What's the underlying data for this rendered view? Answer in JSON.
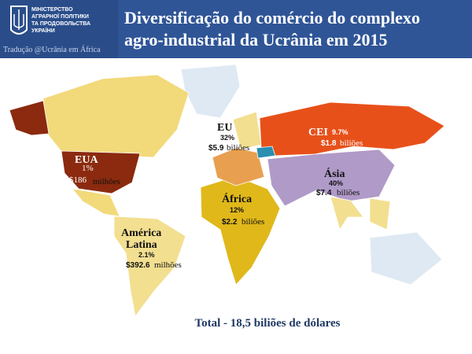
{
  "header": {
    "ministry": [
      "МІНІСТЕРСТВО",
      "АГРАРНОЇ ПОЛІТИКИ",
      "ТА ПРОДОВОЛЬСТВА",
      "УКРАЇНИ"
    ],
    "credit": "Tradução @Ucrânia em África",
    "title": [
      "Diversificação do comércio do complexo",
      "agro-industrial da Ucrânia em 2015"
    ]
  },
  "regions": [
    {
      "name": "EUA",
      "share": "1%",
      "amount": "$186",
      "unit": "milhões"
    },
    {
      "name": "EU",
      "share": "32%",
      "amount": "$5.9",
      "unit": "biliões"
    },
    {
      "name": "CEI",
      "share": "9.7%",
      "amount": "$1.8",
      "unit": "biliões"
    },
    {
      "name": "Ásia",
      "share": "40%",
      "amount": "$7.4",
      "unit": "biliões"
    },
    {
      "name": "África",
      "share": "12%",
      "amount": "$2.2",
      "unit": "biliões"
    },
    {
      "name": "América Latina",
      "share": "2.1%",
      "amount": "$392.6",
      "unit": "milhões"
    }
  ],
  "footer": "Total - 18,5 biliões de dólares"
}
